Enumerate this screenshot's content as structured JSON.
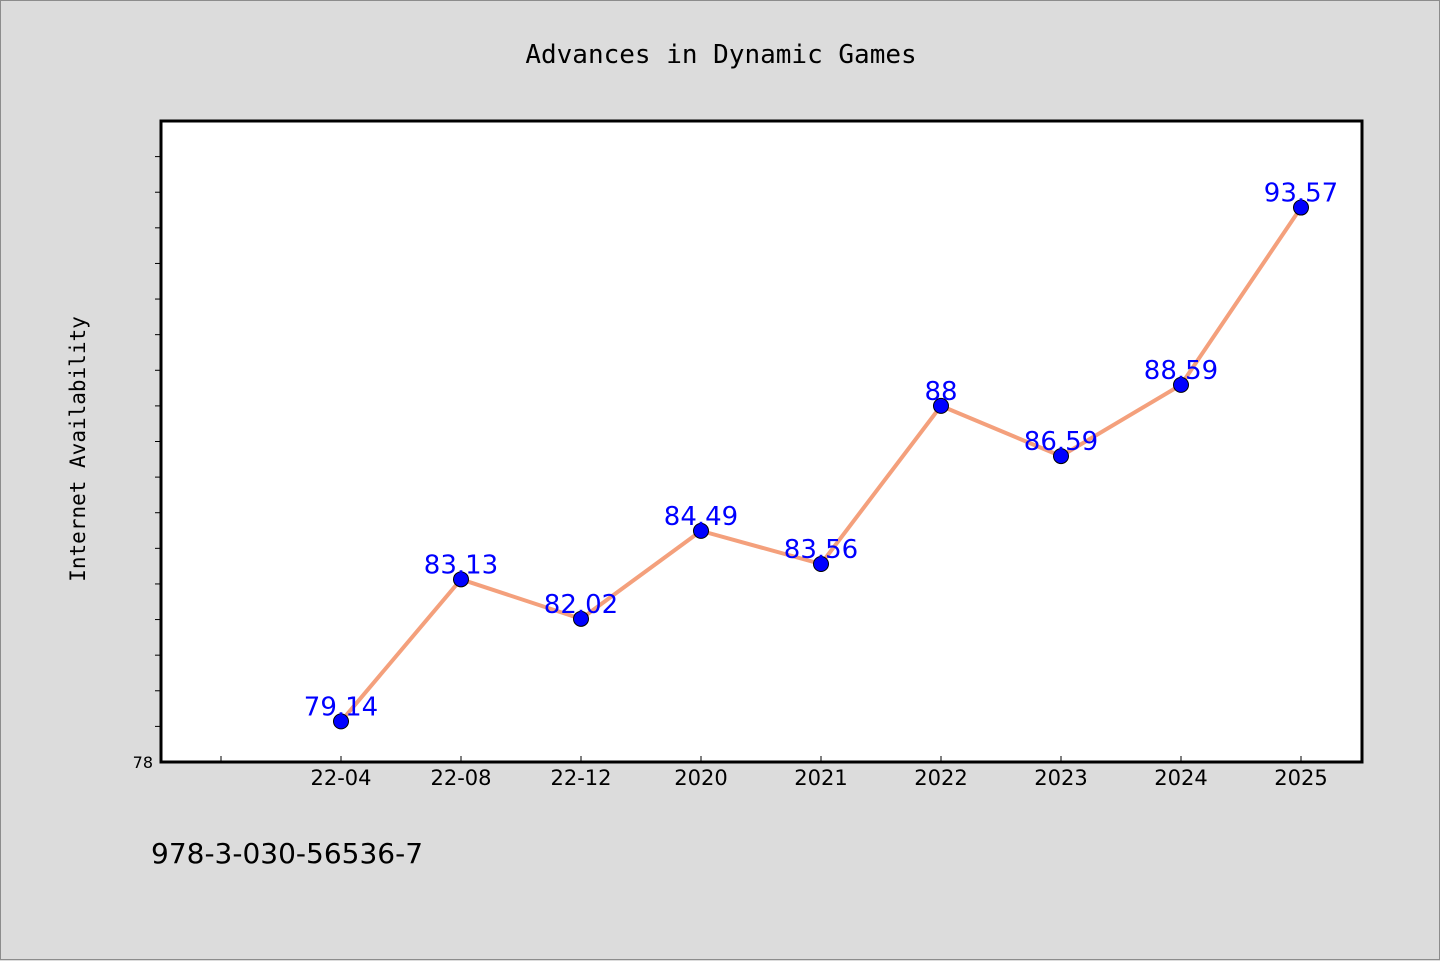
{
  "chart_data": {
    "type": "line",
    "title": "Advances in Dynamic Games",
    "xlabel": "",
    "ylabel": "Internet Availability",
    "categories": [
      "22-04",
      "22-08",
      "22-12",
      "2020",
      "2021",
      "2022",
      "2023",
      "2024",
      "2025"
    ],
    "series": [
      {
        "values": [
          79.14,
          83.13,
          82.02,
          84.49,
          83.56,
          88,
          86.59,
          88.59,
          93.57
        ],
        "labels": [
          "79.14",
          "83.13",
          "82.02",
          "84.49",
          "83.56",
          "88",
          "86.59",
          "88.59",
          "93.57"
        ]
      }
    ],
    "ylim": [
      78,
      96
    ],
    "ytick_labels": [
      "78"
    ],
    "grid": false,
    "legend": "none",
    "colors": {
      "line": "#f4a07c",
      "marker": "#0000ff",
      "data_label": "#0000ff",
      "plot_background": "#ffffff",
      "page_background": "#dcdcdc"
    }
  },
  "footer": {
    "text": "978-3-030-56536-7"
  }
}
